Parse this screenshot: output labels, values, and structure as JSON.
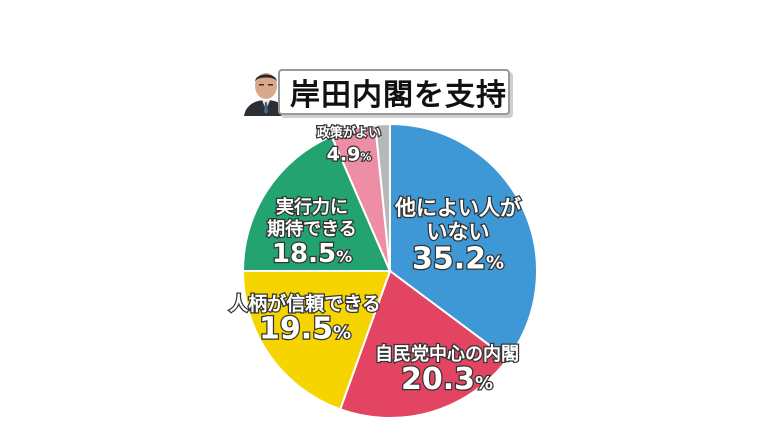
{
  "title": "岸田内閣を支持",
  "colors": {
    "other_none": "#3d98d5",
    "ldp_cabinet": "#e24461",
    "trust": "#f5d400",
    "ability": "#22a36f",
    "policy": "#ee8ea6",
    "rest": "#b8b8b8"
  },
  "chart_data": {
    "type": "pie",
    "title": "岸田内閣を支持",
    "slices": [
      {
        "label_lines": [
          "他によい人が",
          "いない"
        ],
        "value": 35.2,
        "value_text": "35.2",
        "unit": "%",
        "color": "#3d98d5"
      },
      {
        "label_lines": [
          "自民党中心の内閣"
        ],
        "value": 20.3,
        "value_text": "20.3",
        "unit": "%",
        "color": "#e24461"
      },
      {
        "label_lines": [
          "人柄が信頼できる"
        ],
        "value": 19.5,
        "value_text": "19.5",
        "unit": "%",
        "color": "#f5d400"
      },
      {
        "label_lines": [
          "実行力に",
          "期待できる"
        ],
        "value": 18.5,
        "value_text": "18.5",
        "unit": "%",
        "color": "#22a36f"
      },
      {
        "label_lines": [
          "政策がよい"
        ],
        "value": 4.9,
        "value_text": "4.9",
        "unit": "%",
        "color": "#ee8ea6"
      },
      {
        "label_lines": [],
        "value": 1.6,
        "value_text": "",
        "unit": "",
        "color": "#b8b8b8"
      }
    ]
  }
}
